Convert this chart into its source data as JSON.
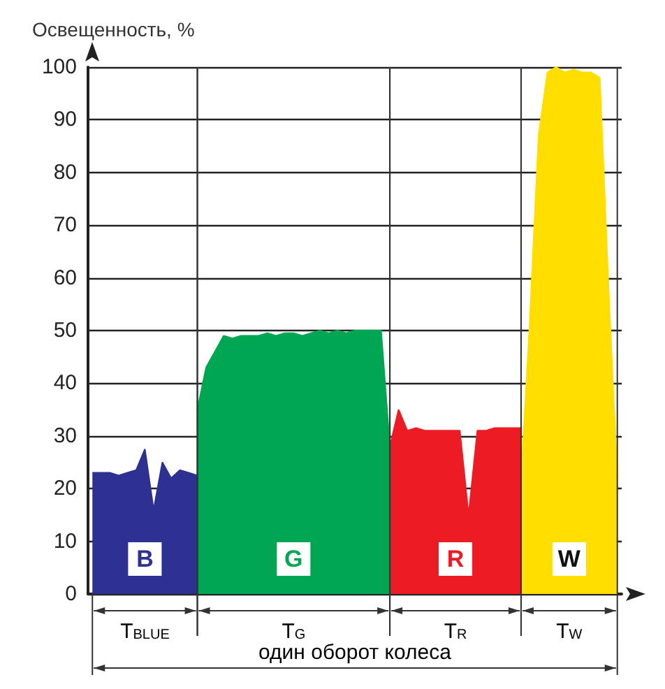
{
  "chart_data": {
    "type": "area",
    "ylabel": "Освещенность, %",
    "categories": [
      null,
      null,
      null,
      null,
      null,
      null,
      null,
      null,
      null,
      null,
      null,
      null,
      null,
      null,
      null,
      null,
      null,
      null,
      null,
      null,
      null,
      null,
      null,
      null,
      null,
      null,
      null,
      null,
      null,
      null,
      null,
      null,
      null,
      null,
      null,
      null,
      null,
      null,
      null,
      null,
      null,
      null,
      null,
      null,
      null,
      null,
      null,
      null,
      null,
      null,
      null,
      null,
      null,
      null,
      null,
      null,
      null,
      null,
      null,
      null,
      null
    ],
    "series": [
      {
        "name": "B",
        "color": "#2e3192",
        "values": [
          23,
          23,
          23,
          22.5,
          23,
          23.5,
          27.5,
          16,
          25,
          22,
          23.5,
          23,
          22.5,
          null,
          null,
          null,
          null,
          null,
          null,
          null,
          null,
          null,
          null,
          null,
          null,
          null,
          null,
          null,
          null,
          null,
          null,
          null,
          null,
          null,
          null,
          null,
          null,
          null,
          null,
          null,
          null,
          null,
          null,
          null,
          null,
          null,
          null,
          null,
          null,
          null,
          null,
          null,
          null,
          null,
          null,
          null,
          null,
          null,
          null,
          null,
          null
        ]
      },
      {
        "name": "G",
        "color": "#00a651",
        "values": [
          null,
          null,
          null,
          null,
          null,
          null,
          null,
          null,
          null,
          null,
          null,
          null,
          35,
          43,
          46,
          49,
          48.5,
          49,
          49,
          49,
          49.5,
          49,
          49.5,
          49.5,
          49,
          49.5,
          50,
          49.5,
          50,
          49.5,
          50,
          50,
          50,
          50,
          28,
          null,
          null,
          null,
          null,
          null,
          null,
          null,
          null,
          null,
          null,
          null,
          null,
          null,
          null,
          null,
          null,
          null,
          null,
          null,
          null,
          null,
          null,
          null,
          null,
          null,
          null
        ]
      },
      {
        "name": "R",
        "color": "#ed1c24",
        "values": [
          null,
          null,
          null,
          null,
          null,
          null,
          null,
          null,
          null,
          null,
          null,
          null,
          null,
          null,
          null,
          null,
          null,
          null,
          null,
          null,
          null,
          null,
          null,
          null,
          null,
          null,
          null,
          null,
          null,
          null,
          null,
          null,
          null,
          null,
          28,
          35,
          31,
          31.5,
          31,
          31,
          31,
          31,
          31,
          15,
          31,
          31,
          31.5,
          31.5,
          31.5,
          31.5,
          null,
          null,
          null,
          null,
          null,
          null,
          null,
          null,
          null,
          null,
          null
        ]
      },
      {
        "name": "W",
        "color": "#ffde00",
        "values": [
          null,
          null,
          null,
          null,
          null,
          null,
          null,
          null,
          null,
          null,
          null,
          null,
          null,
          null,
          null,
          null,
          null,
          null,
          null,
          null,
          null,
          null,
          null,
          null,
          null,
          null,
          null,
          null,
          null,
          null,
          null,
          null,
          null,
          null,
          null,
          null,
          null,
          null,
          null,
          null,
          null,
          null,
          null,
          null,
          null,
          null,
          null,
          null,
          null,
          22,
          52,
          87,
          99,
          100,
          99,
          99.5,
          99,
          99,
          98,
          58,
          22
        ]
      }
    ],
    "ylim": [
      0,
      100
    ],
    "yticks": [
      0,
      10,
      20,
      30,
      40,
      50,
      60,
      70,
      80,
      90,
      100
    ],
    "grid": true,
    "legend": false,
    "annotations": [
      "T$_{BLUE}$",
      "T$_{G}$",
      "T$_{R}$",
      "T$_{W}$",
      "один оборот колеса"
    ]
  }
}
